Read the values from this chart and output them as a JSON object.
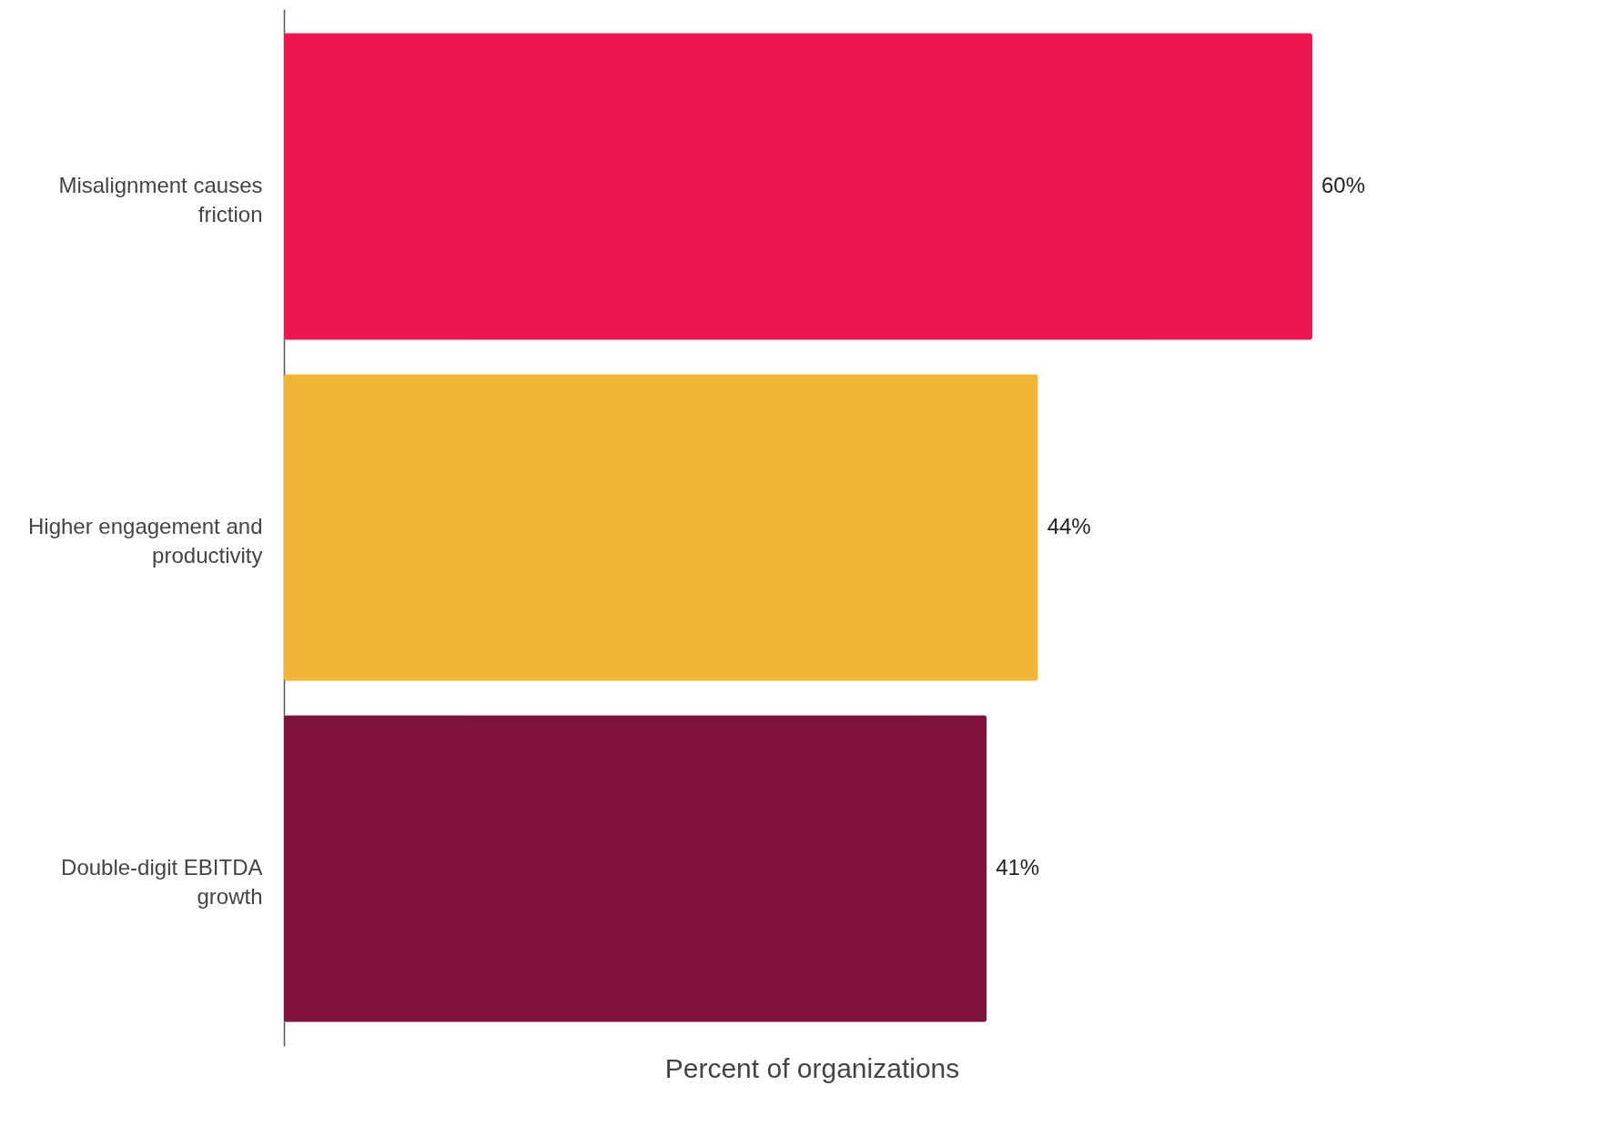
{
  "chart_data": {
    "type": "bar",
    "orientation": "horizontal",
    "xlabel": "Percent of organizations",
    "categories": [
      "Misalignment causes friction",
      "Higher engagement and productivity",
      "Double-digit EBITDA growth"
    ],
    "values": [
      60,
      44,
      41
    ],
    "colors": [
      "#ee1650",
      "#f2b636",
      "#80133b"
    ],
    "value_labels": [
      "60%",
      "44%",
      "41%"
    ],
    "xlim": [
      0,
      60
    ],
    "grid": false,
    "legend": false
  }
}
